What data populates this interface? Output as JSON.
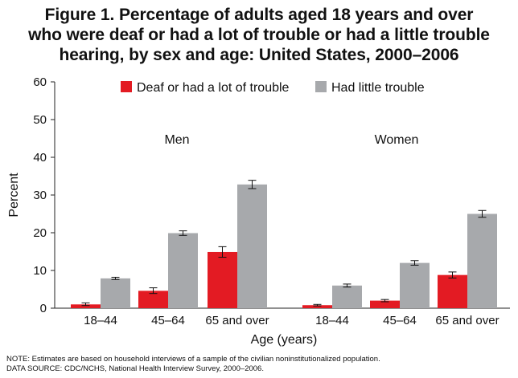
{
  "title_lines": [
    "Figure 1. Percentage of adults aged 18 years and over",
    "who were deaf or had a lot of trouble or had a little trouble",
    "hearing, by sex and age: United States, 2000–2006"
  ],
  "notes": [
    "NOTE: Estimates are based on household interviews of a sample of the civilian noninstitutionalized population.",
    "DATA SOURCE: CDC/NCHS, National Health Interview Survey, 2000–2006."
  ],
  "chart_data": {
    "type": "bar",
    "title": "Figure 1. Percentage of adults aged 18 years and over who were deaf or had a lot of trouble or had a little trouble hearing, by sex and age: United States, 2000–2006",
    "xlabel": "Age (years)",
    "ylabel": "Percent",
    "ylim": [
      0,
      60
    ],
    "yticks": [
      0,
      10,
      20,
      30,
      40,
      50,
      60
    ],
    "grid": false,
    "legend_position": "top",
    "groups": [
      {
        "label": "Men",
        "categories": [
          "18–44",
          "45–64",
          "65 and over"
        ]
      },
      {
        "label": "Women",
        "categories": [
          "18–44",
          "45–64",
          "65 and over"
        ]
      }
    ],
    "series": [
      {
        "name": "Deaf or had a lot of trouble",
        "color": "#e31b23",
        "values": [
          1.0,
          4.6,
          14.9,
          0.8,
          2.0,
          8.8
        ],
        "error_low": [
          0.7,
          3.9,
          13.5,
          0.6,
          1.7,
          8.0
        ],
        "error_high": [
          1.4,
          5.4,
          16.3,
          1.0,
          2.3,
          9.6
        ]
      },
      {
        "name": "Had little trouble",
        "color": "#a7a9ac",
        "values": [
          7.9,
          19.9,
          32.8,
          6.0,
          12.0,
          25.0
        ],
        "error_low": [
          7.6,
          19.3,
          31.7,
          5.6,
          11.4,
          24.1
        ],
        "error_high": [
          8.2,
          20.5,
          33.9,
          6.4,
          12.6,
          25.9
        ]
      }
    ]
  }
}
